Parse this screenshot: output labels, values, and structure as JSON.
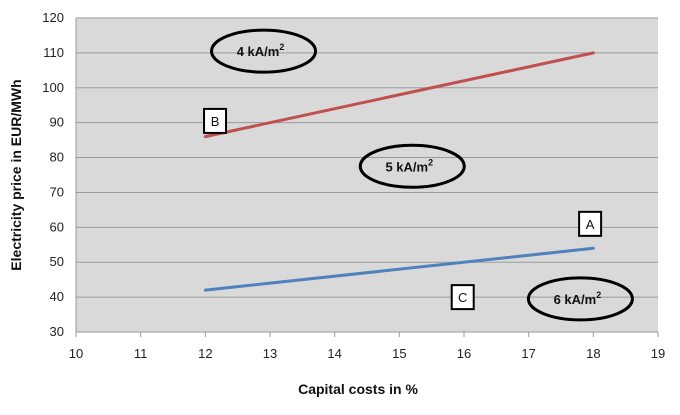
{
  "chart_data": {
    "type": "line",
    "xlabel": "Capital costs in %",
    "ylabel": "Electricity price in EUR/MWh",
    "xlim": [
      10,
      19
    ],
    "ylim": [
      30,
      120
    ],
    "x_ticks": [
      "10",
      "11",
      "12",
      "13",
      "14",
      "15",
      "16",
      "17",
      "18",
      "19"
    ],
    "y_ticks": [
      "30",
      "40",
      "50",
      "60",
      "70",
      "80",
      "90",
      "100",
      "110",
      "120"
    ],
    "grid": true,
    "plot_background": "#d9d9d9",
    "series": [
      {
        "color": "#c0504d",
        "points": [
          [
            12,
            86
          ],
          [
            18,
            110
          ]
        ]
      },
      {
        "color": "#4f81bd",
        "points": [
          [
            12,
            42
          ],
          [
            18,
            54
          ]
        ]
      }
    ],
    "annotations": {
      "ellipses": [
        {
          "base": "4 kA/m",
          "sup": "2",
          "x": 12.9,
          "y": 110.5
        },
        {
          "base": "5 kA/m",
          "sup": "2",
          "x": 15.2,
          "y": 77.5
        },
        {
          "base": "6 kA/m",
          "sup": "2",
          "x": 17.8,
          "y": 39.5
        }
      ],
      "boxes": [
        {
          "label": "B",
          "x": 12.15,
          "y": 90.5
        },
        {
          "label": "A",
          "x": 17.95,
          "y": 61
        },
        {
          "label": "C",
          "x": 15.98,
          "y": 40
        }
      ]
    }
  }
}
